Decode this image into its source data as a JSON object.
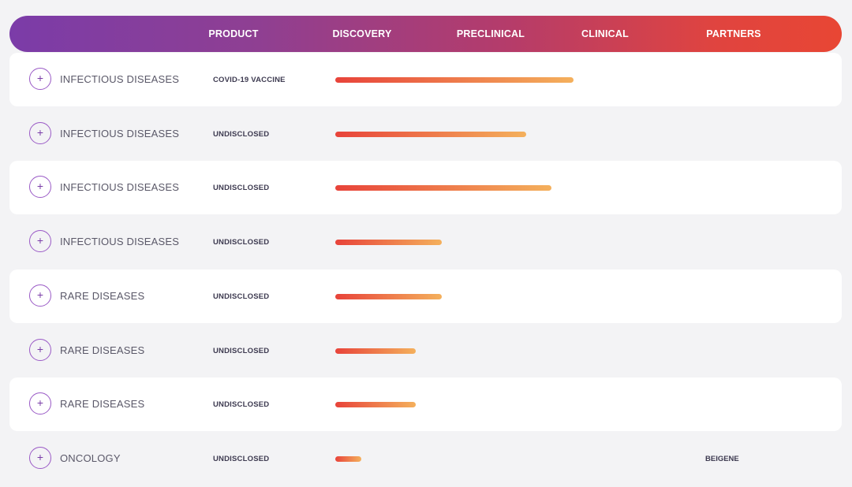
{
  "header": {
    "columns": [
      "PRODUCT",
      "DISCOVERY",
      "PRECLINICAL",
      "CLINICAL",
      "PARTNERS"
    ]
  },
  "colors": {
    "gradient_start": "#7b3ca8",
    "gradient_end": "#e84634",
    "bar_start": "#e8433a",
    "bar_end": "#f4b05c"
  },
  "expand_icon": "plus-circle-icon",
  "rows": [
    {
      "area": "INFECTIOUS DISEASES",
      "product": "COVID-19 VACCINE",
      "progress_pct": 65,
      "partner": ""
    },
    {
      "area": "INFECTIOUS DISEASES",
      "product": "UNDISCLOSED",
      "progress_pct": 52,
      "partner": ""
    },
    {
      "area": "INFECTIOUS DISEASES",
      "product": "UNDISCLOSED",
      "progress_pct": 59,
      "partner": ""
    },
    {
      "area": "INFECTIOUS DISEASES",
      "product": "UNDISCLOSED",
      "progress_pct": 29,
      "partner": ""
    },
    {
      "area": "RARE DISEASES",
      "product": "UNDISCLOSED",
      "progress_pct": 29,
      "partner": ""
    },
    {
      "area": "RARE DISEASES",
      "product": "UNDISCLOSED",
      "progress_pct": 22,
      "partner": ""
    },
    {
      "area": "RARE DISEASES",
      "product": "UNDISCLOSED",
      "progress_pct": 22,
      "partner": ""
    },
    {
      "area": "ONCOLOGY",
      "product": "UNDISCLOSED",
      "progress_pct": 7,
      "partner": "BEIGENE"
    }
  ]
}
